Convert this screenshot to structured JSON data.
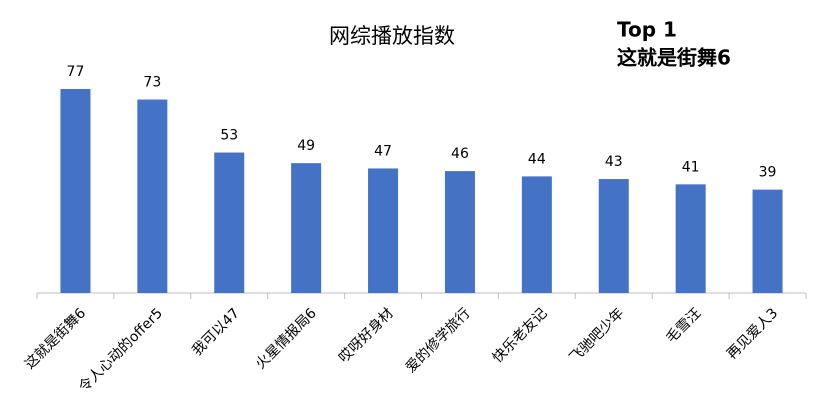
{
  "chart_data": {
    "type": "bar",
    "title": "网综播放指数",
    "annotations": [
      "Top 1",
      "这就是街舞6"
    ],
    "categories": [
      "这就是街舞6",
      "令人心动的offer5",
      "我可以47",
      "火星情报局6",
      "哎呀好身材",
      "爱的修学旅行",
      "快乐老友记",
      "飞驰吧少年",
      "毛雪汪",
      "再见爱人3"
    ],
    "values": [
      77,
      73,
      53,
      49,
      47,
      46,
      44,
      43,
      41,
      39
    ],
    "color": "#4472c4",
    "annotation_color": "#f5b400"
  }
}
